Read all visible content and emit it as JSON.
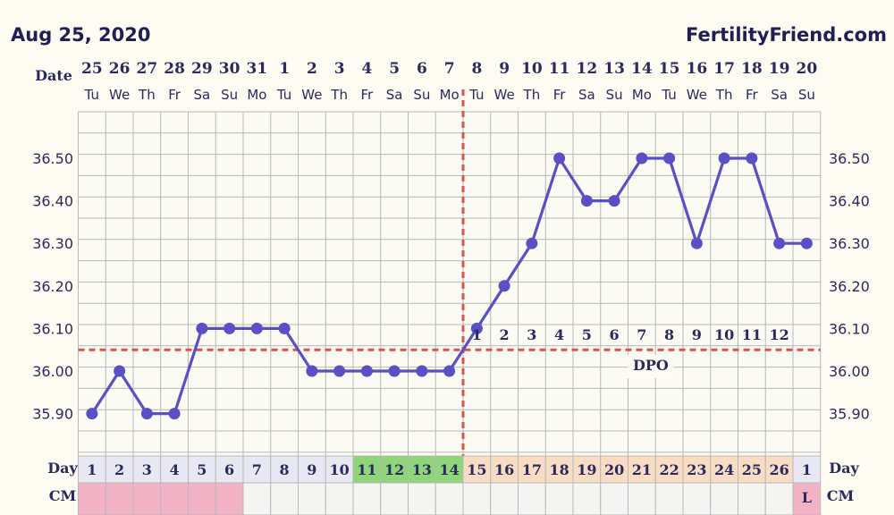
{
  "header": {
    "date": "Aug 25, 2020",
    "site": "FertilityFriend.com"
  },
  "labels": {
    "date_row": "Date",
    "day_row": "Day",
    "cm_row": "CM",
    "dpo": "DPO"
  },
  "colors": {
    "line": "#5a4fc4",
    "coverline": "#d9534f",
    "fertile_day": "#8fd67a",
    "luteal_day": "#f9dcc4",
    "neutral_day": "#e8e8f2",
    "cm_menses": "#f2b3c6",
    "cm_empty": "#f4f4f2"
  },
  "chart_data": {
    "type": "line",
    "title": "",
    "ylabel": "",
    "ylim": [
      35.8,
      36.6
    ],
    "yticks": [
      "36.50",
      "36.40",
      "36.30",
      "36.20",
      "36.10",
      "36.00",
      "35.90"
    ],
    "x": [
      "25",
      "26",
      "27",
      "28",
      "29",
      "30",
      "31",
      "1",
      "2",
      "3",
      "4",
      "5",
      "6",
      "7",
      "8",
      "9",
      "10",
      "11",
      "12",
      "13",
      "14",
      "15",
      "16",
      "17",
      "18",
      "19",
      "20"
    ],
    "dow": [
      "Tu",
      "We",
      "Th",
      "Fr",
      "Sa",
      "Su",
      "Mo",
      "Tu",
      "We",
      "Th",
      "Fr",
      "Sa",
      "Su",
      "Mo",
      "Tu",
      "We",
      "Th",
      "Fr",
      "Sa",
      "Su",
      "Mo",
      "Tu",
      "We",
      "Th",
      "Fr",
      "Sa",
      "Su"
    ],
    "series": [
      {
        "values": [
          35.9,
          36.0,
          35.9,
          35.9,
          36.1,
          36.1,
          36.1,
          36.1,
          36.0,
          36.0,
          36.0,
          36.0,
          36.0,
          36.0,
          36.1,
          36.2,
          36.3,
          36.5,
          36.4,
          36.4,
          36.5,
          36.5,
          36.3,
          36.5,
          36.5,
          36.3,
          36.3
        ]
      }
    ],
    "coverline": 36.05,
    "ovulation_index": 13,
    "dpo_labels": [
      "1",
      "2",
      "3",
      "4",
      "5",
      "6",
      "7",
      "8",
      "9",
      "10",
      "11",
      "12"
    ],
    "dpo_start_index": 14,
    "cycle_days": [
      "1",
      "2",
      "3",
      "4",
      "5",
      "6",
      "7",
      "8",
      "9",
      "10",
      "11",
      "12",
      "13",
      "14",
      "15",
      "16",
      "17",
      "18",
      "19",
      "20",
      "21",
      "22",
      "23",
      "24",
      "25",
      "26",
      "1"
    ],
    "fertile_day_indices": [
      10,
      11,
      12,
      13
    ],
    "luteal_day_range": [
      14,
      25
    ],
    "cm": [
      "",
      "",
      "",
      "",
      "",
      "",
      "",
      "",
      "",
      "",
      "",
      "",
      "",
      "",
      "",
      "",
      "",
      "",
      "",
      "",
      "",
      "",
      "",
      "",
      "",
      "",
      "L"
    ],
    "cm_menses_indices": [
      0,
      1,
      2,
      3,
      4,
      5,
      26
    ],
    "grid": true
  }
}
